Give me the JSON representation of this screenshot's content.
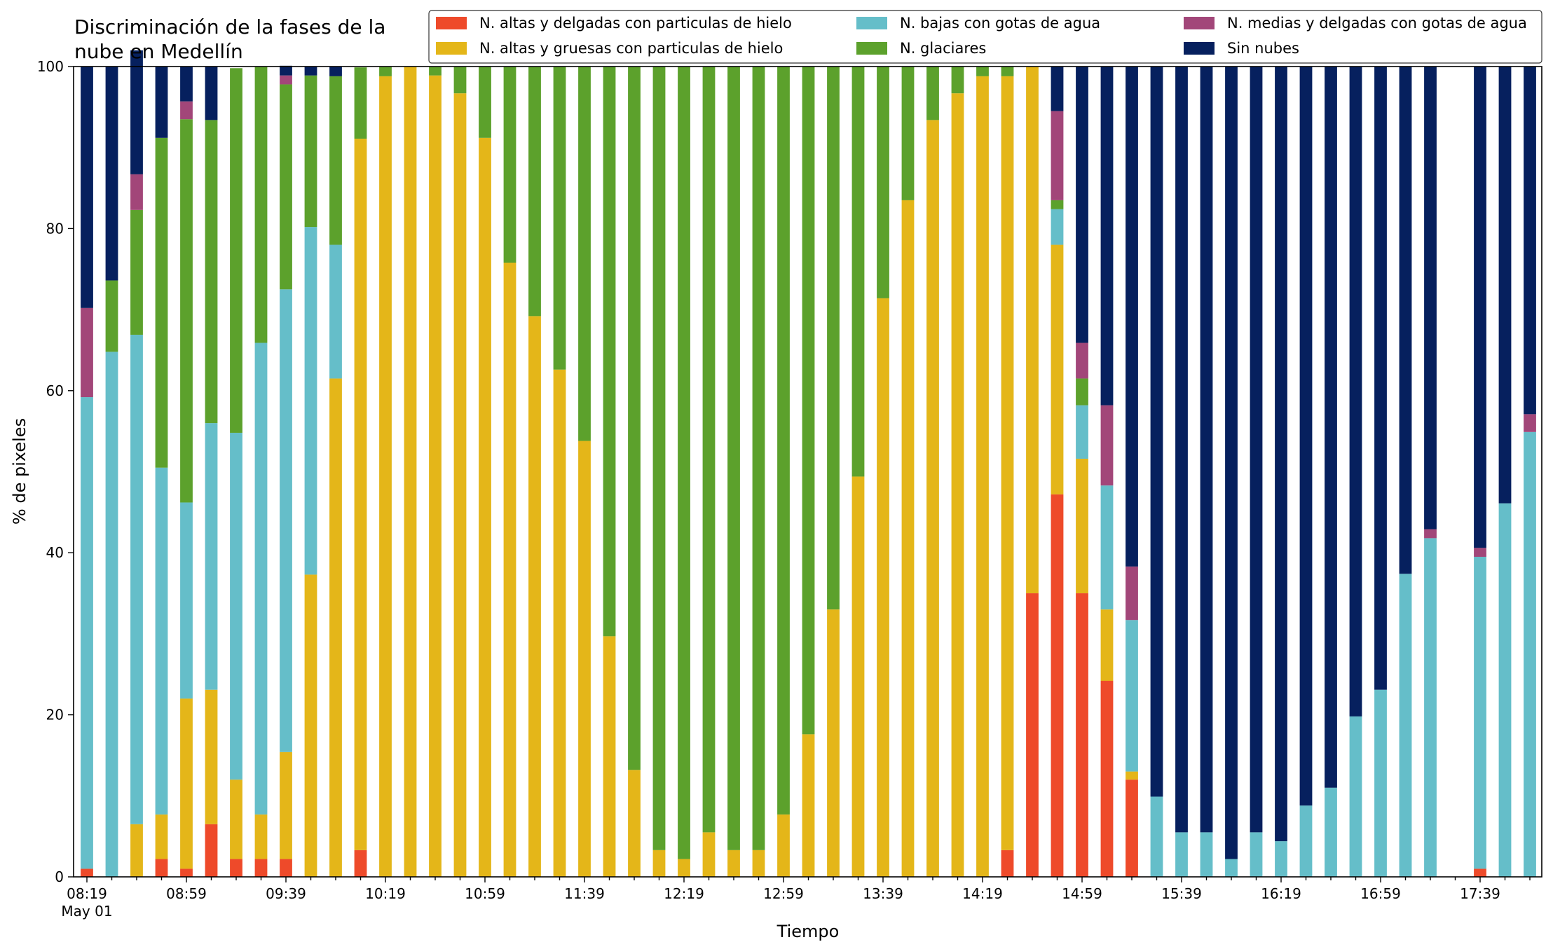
{
  "chart_data": {
    "type": "bar",
    "stacked": true,
    "title_lines": [
      "Discriminación de la fases de la",
      "nube en Medellín"
    ],
    "xlabel": "Tiempo",
    "ylabel": "% de pixeles",
    "ylim": [
      0,
      100
    ],
    "yticks": [
      0,
      20,
      40,
      60,
      80,
      100
    ],
    "grid": false,
    "legend_position": "top",
    "xtick_labels": [
      "08:19",
      "08:59",
      "09:39",
      "10:19",
      "10:59",
      "11:39",
      "12:19",
      "12:59",
      "13:39",
      "14:19",
      "14:59",
      "15:39",
      "16:19",
      "16:59",
      "17:39"
    ],
    "xtick_sublabel": "May 01",
    "tick_every": 4,
    "series": [
      {
        "name": "N. altas y delgadas con particulas de hielo",
        "color": "#ee4a2a",
        "values": [
          1,
          0,
          0,
          2.2,
          1,
          6.5,
          2.2,
          2.2,
          2.2,
          0,
          0,
          3.3,
          0,
          0,
          0,
          0,
          0,
          0,
          0,
          0,
          0,
          0,
          0,
          0,
          0,
          0,
          0,
          0,
          0,
          0,
          0,
          0,
          0,
          0,
          0,
          0,
          0,
          3.3,
          35,
          47.2,
          35,
          24.2,
          12,
          0,
          0,
          0,
          0,
          0,
          0,
          0,
          0,
          0,
          0,
          0,
          0,
          0,
          1,
          0,
          0
        ]
      },
      {
        "name": "N. altas y gruesas con particulas de hielo",
        "color": "#e4b619",
        "values": [
          0,
          0,
          6.5,
          5.5,
          21,
          16.6,
          9.8,
          5.5,
          13.2,
          37.3,
          61.5,
          87.8,
          98.8,
          100,
          98.9,
          96.7,
          91.2,
          75.8,
          69.2,
          62.6,
          53.8,
          29.7,
          13.2,
          3.3,
          2.2,
          5.5,
          3.3,
          3.3,
          7.7,
          17.6,
          33,
          49.4,
          71.4,
          83.5,
          93.4,
          96.7,
          98.8,
          95.5,
          65,
          30.8,
          16.6,
          8.8,
          1,
          0,
          0,
          0,
          0,
          0,
          0,
          0,
          0,
          0,
          0,
          0,
          0,
          0,
          0,
          0,
          0
        ]
      },
      {
        "name": "N. bajas con gotas de agua",
        "color": "#65bec9",
        "values": [
          58.2,
          64.8,
          60.4,
          42.8,
          24.2,
          32.9,
          42.8,
          58.2,
          57.1,
          42.9,
          16.5,
          0,
          0,
          0,
          0,
          0,
          0,
          0,
          0,
          0,
          0,
          0,
          0,
          0,
          0,
          0,
          0,
          0,
          0,
          0,
          0,
          0,
          0,
          0,
          0,
          0,
          0,
          0,
          0,
          4.4,
          6.6,
          15.3,
          18.7,
          9.9,
          5.5,
          5.5,
          2.2,
          5.5,
          4.4,
          8.8,
          11,
          19.8,
          23.1,
          37.4,
          41.8,
          0,
          38.5,
          46.1,
          54.9
        ]
      },
      {
        "name": "N. glaciares",
        "color": "#5ca12c",
        "values": [
          0,
          8.8,
          15.4,
          40.7,
          47.3,
          37.4,
          45,
          34.1,
          25.3,
          18.7,
          20.8,
          8.8,
          1.2,
          0,
          1.1,
          3.3,
          8.8,
          24.2,
          30.8,
          37.4,
          46.2,
          70.3,
          86.8,
          96.7,
          97.8,
          94.5,
          96.7,
          96.7,
          92.3,
          82.4,
          67,
          50.6,
          28.6,
          16.5,
          6.6,
          3.3,
          1.2,
          1.2,
          0,
          1.1,
          3.3,
          0,
          0,
          0,
          0,
          0,
          0,
          0,
          0,
          0,
          0,
          0,
          0,
          0,
          0,
          0,
          0,
          0,
          0
        ]
      },
      {
        "name": "N. medias y delgadas con gotas de agua",
        "color": "#a24679",
        "values": [
          11,
          0,
          4.4,
          0,
          2.2,
          0,
          0,
          0,
          1.1,
          0,
          0,
          0,
          0,
          0,
          0,
          0,
          0,
          0,
          0,
          0,
          0,
          0,
          0,
          0,
          0,
          0,
          0,
          0,
          0,
          0,
          0,
          0,
          0,
          0,
          0,
          0,
          0,
          0,
          0,
          11,
          4.4,
          9.9,
          6.6,
          0,
          0,
          0,
          0,
          0,
          0,
          0,
          0,
          0,
          0,
          0,
          1.1,
          0,
          1.1,
          0,
          2.2
        ]
      },
      {
        "name": "Sin nubes",
        "color": "#06205e",
        "values": [
          29.8,
          26.4,
          15.3,
          8.8,
          4.3,
          6.6,
          0,
          0,
          1.2,
          1.1,
          1.2,
          0,
          0,
          0,
          0,
          0,
          0,
          0,
          0,
          0,
          0,
          0,
          0,
          0,
          0,
          0,
          0,
          0,
          0,
          0,
          0,
          0,
          0,
          0,
          0,
          0,
          0,
          0,
          0,
          5.5,
          34.1,
          41.8,
          61.7,
          90.1,
          94.5,
          94.5,
          97.8,
          94.5,
          95.6,
          91.2,
          89,
          80.2,
          76.9,
          62.6,
          57.1,
          0,
          59.4,
          53.9,
          42.9
        ]
      }
    ]
  }
}
